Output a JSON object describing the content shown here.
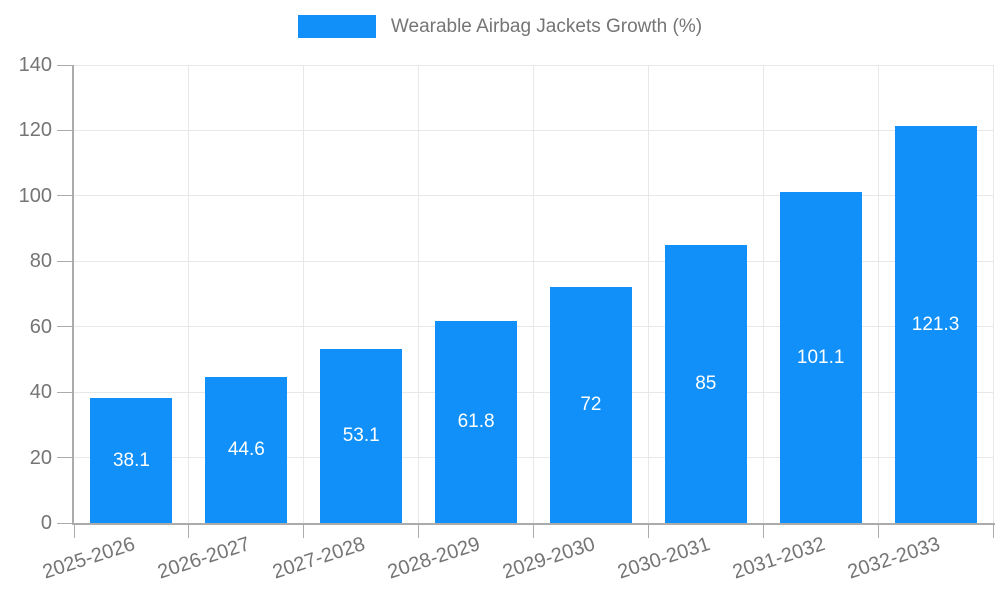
{
  "chart_data": {
    "type": "bar",
    "title": "",
    "xlabel": "",
    "ylabel": "",
    "legend": {
      "label": "Wearable Airbag Jackets Growth (%)",
      "position": "top-center"
    },
    "categories": [
      "2025-2026",
      "2026-2027",
      "2027-2028",
      "2028-2029",
      "2029-2030",
      "2030-2031",
      "2031-2032",
      "2032-2033"
    ],
    "values": [
      38.1,
      44.6,
      53.1,
      61.8,
      72,
      85,
      101.1,
      121.3
    ],
    "value_labels": [
      "38.1",
      "44.6",
      "53.1",
      "61.8",
      "72",
      "85",
      "101.1",
      "121.3"
    ],
    "ylim": [
      0,
      140
    ],
    "ytick_step": 20,
    "ytick_labels": [
      "0",
      "20",
      "40",
      "60",
      "80",
      "100",
      "120",
      "140"
    ],
    "grid": true,
    "colors": {
      "bar": "#1090f8",
      "grid": "#e8e8e8",
      "axis": "#ababab",
      "tick_text": "#757575",
      "value_label": "#ffffff",
      "background": "#ffffff"
    }
  }
}
